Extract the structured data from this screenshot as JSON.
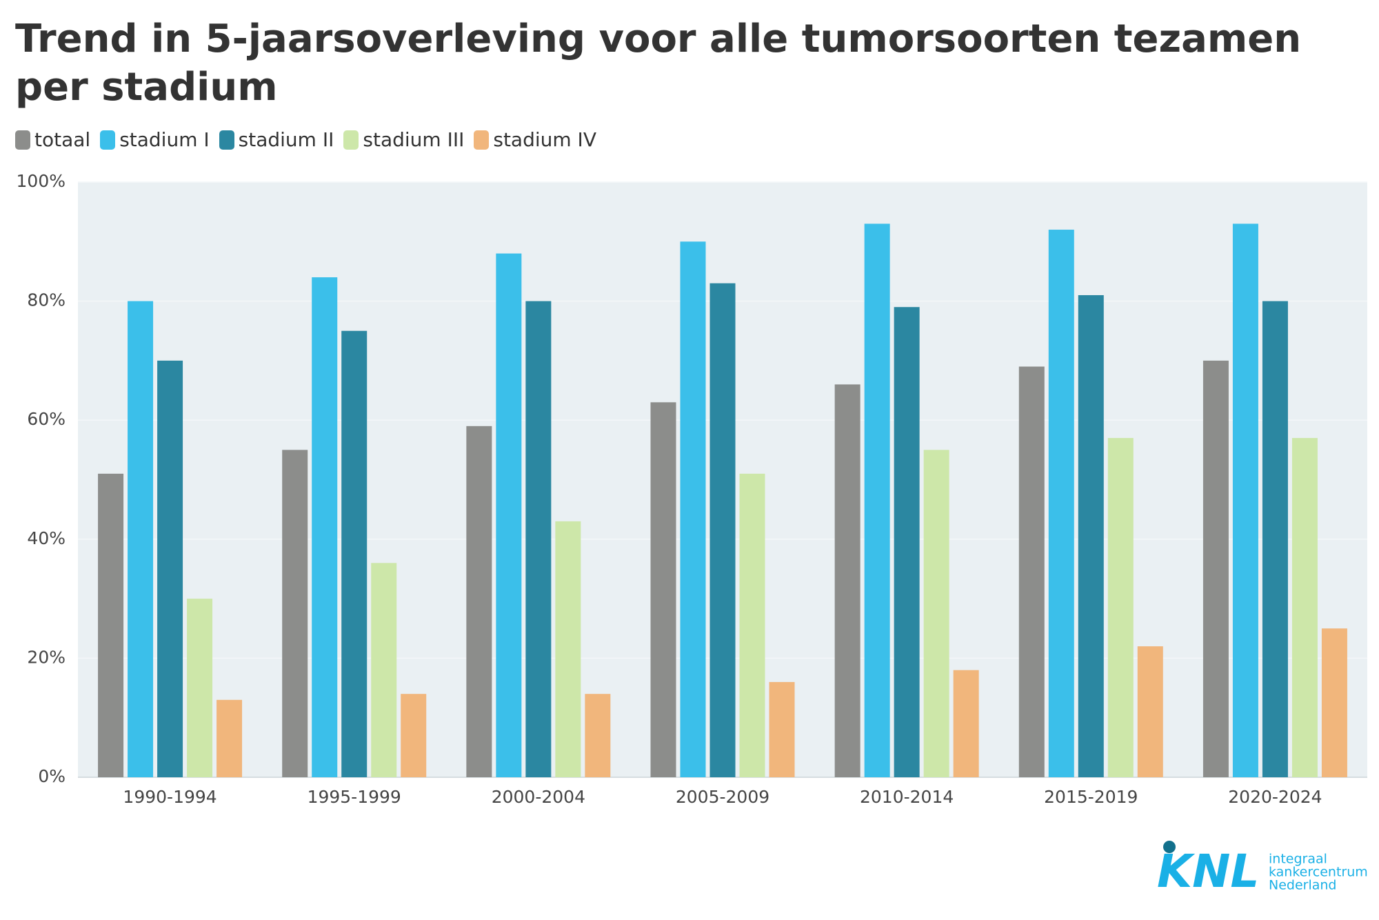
{
  "chart_data": {
    "type": "bar",
    "title": "Trend in 5-jaarsoverleving voor alle tumorsoorten tezamen per stadium",
    "categories": [
      "1990-1994",
      "1995-1999",
      "2000-2004",
      "2005-2009",
      "2010-2014",
      "2015-2019",
      "2020-2024"
    ],
    "series": [
      {
        "name": "totaal",
        "color": "#8c8d8b",
        "values": [
          51,
          55,
          59,
          63,
          66,
          69,
          70
        ]
      },
      {
        "name": "stadium I",
        "color": "#3bbfea",
        "values": [
          80,
          84,
          88,
          90,
          93,
          92,
          93
        ]
      },
      {
        "name": "stadium II",
        "color": "#2b87a1",
        "values": [
          70,
          75,
          80,
          83,
          79,
          81,
          80
        ]
      },
      {
        "name": "stadium III",
        "color": "#cde7a9",
        "values": [
          30,
          36,
          43,
          51,
          55,
          57,
          57
        ]
      },
      {
        "name": "stadium IV",
        "color": "#f1b67c",
        "values": [
          13,
          14,
          14,
          16,
          18,
          22,
          25
        ]
      }
    ],
    "ylim": [
      0,
      100
    ],
    "yticks": [
      {
        "value": 0,
        "label": "0%"
      },
      {
        "value": 20,
        "label": "20%"
      },
      {
        "value": 40,
        "label": "40%"
      },
      {
        "value": 60,
        "label": "60%"
      },
      {
        "value": 80,
        "label": "80%"
      },
      {
        "value": 100,
        "label": "100%"
      }
    ],
    "grid": true,
    "logo": {
      "mark": "KNL",
      "lines": [
        "integraal",
        "kankercentrum",
        "Nederland"
      ]
    }
  }
}
